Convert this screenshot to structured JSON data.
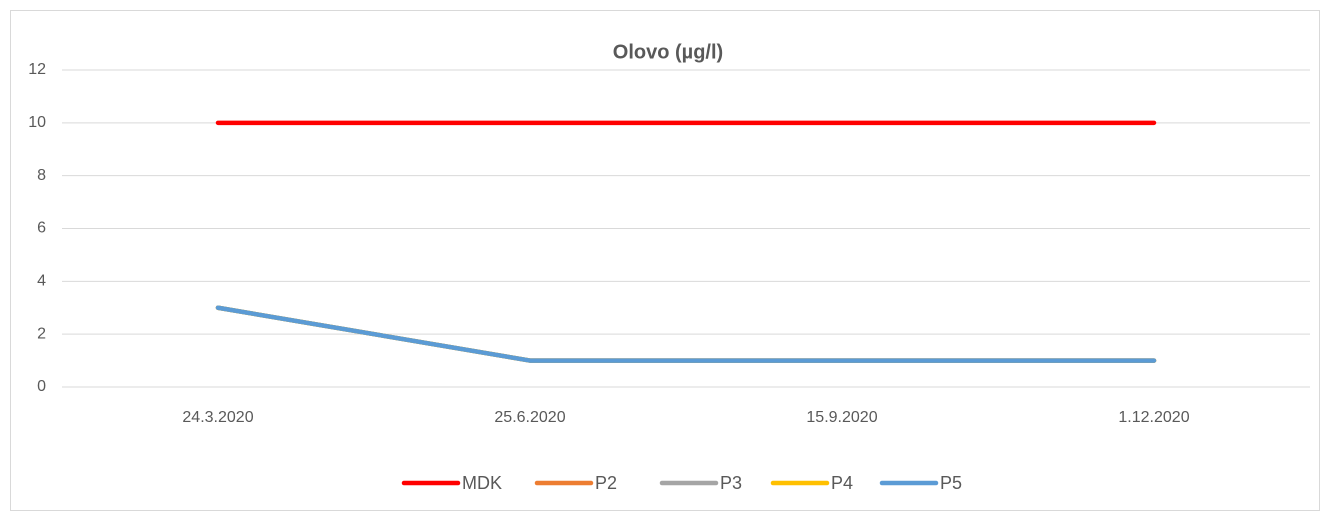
{
  "chart_data": {
    "type": "line",
    "title": "Olovo (µg/l)",
    "categories": [
      "24.3.2020",
      "25.6.2020",
      "15.9.2020",
      "1.12.2020"
    ],
    "series": [
      {
        "name": "MDK",
        "color": "#ff0000",
        "values": [
          10,
          10,
          10,
          10
        ]
      },
      {
        "name": "P2",
        "color": "#ed7d31",
        "values": [
          3,
          1,
          1,
          1
        ]
      },
      {
        "name": "P3",
        "color": "#a5a5a5",
        "values": [
          3,
          1,
          1,
          1
        ]
      },
      {
        "name": "P4",
        "color": "#ffc000",
        "values": [
          3,
          1,
          1,
          1
        ]
      },
      {
        "name": "P5",
        "color": "#5b9bd5",
        "values": [
          3,
          1,
          1,
          1
        ]
      }
    ],
    "ylim": [
      0,
      12
    ],
    "yticks": [
      0,
      2,
      4,
      6,
      8,
      10,
      12
    ],
    "grid": true,
    "legend": "bottom"
  }
}
